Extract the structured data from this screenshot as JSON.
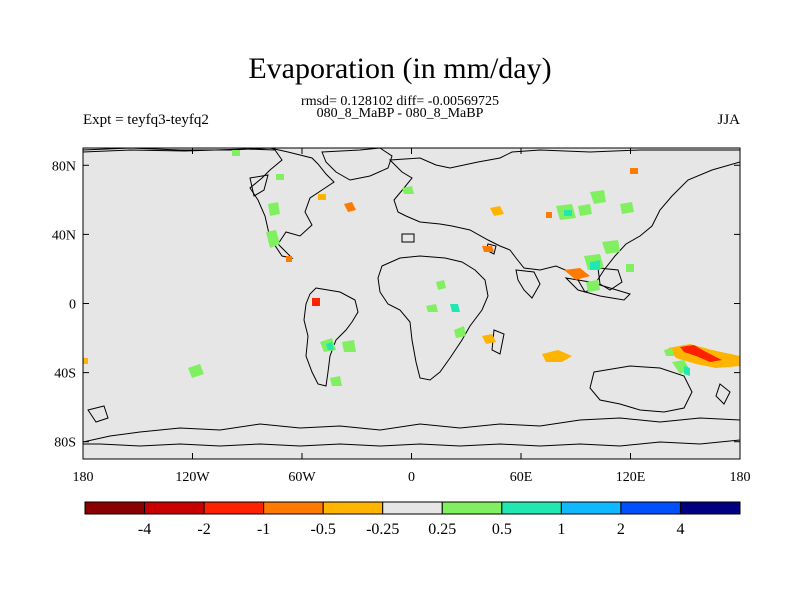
{
  "title": "Evaporation (in mm/day)",
  "stats_line": "rmsd= 0.128102 diff= -0.00569725",
  "subtitle": "080_8_MaBP - 080_8_MaBP",
  "left_label": "Expt = teyfq3-teyfq2",
  "right_label": "JJA",
  "map": {
    "projection": "cylindrical-equidistant",
    "lon_range": [
      -180,
      180
    ],
    "lat_range": [
      -90,
      90
    ],
    "background_color": "#e6e6e6",
    "x_ticks": [
      {
        "lon": -180,
        "label": "180"
      },
      {
        "lon": -120,
        "label": "120W"
      },
      {
        "lon": -60,
        "label": "60W"
      },
      {
        "lon": 0,
        "label": "0"
      },
      {
        "lon": 60,
        "label": "60E"
      },
      {
        "lon": 120,
        "label": "120E"
      },
      {
        "lon": 180,
        "label": "180"
      }
    ],
    "y_ticks": [
      {
        "lat": 80,
        "label": "80N"
      },
      {
        "lat": 40,
        "label": "40N"
      },
      {
        "lat": 0,
        "label": "0"
      },
      {
        "lat": -40,
        "label": "40S"
      },
      {
        "lat": -80,
        "label": "80S"
      }
    ]
  },
  "colorbar": {
    "colors": [
      "#8b0000",
      "#c80000",
      "#ff2200",
      "#ff7a00",
      "#ffb400",
      "#e6e6e6",
      "#80f060",
      "#20e8b0",
      "#10b8ff",
      "#0050ff",
      "#000080"
    ],
    "labels": [
      "-4",
      "-2",
      "-1",
      "-0.5",
      "-0.25",
      "0.25",
      "0.5",
      "1",
      "2",
      "4"
    ]
  }
}
